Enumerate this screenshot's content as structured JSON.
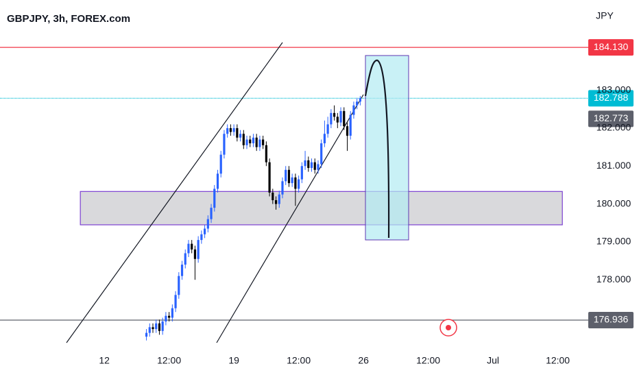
{
  "chart_data": {
    "type": "candlestick",
    "title": "GBPJPY, 3h, FOREX.com",
    "y_unit": "JPY",
    "x": [
      13,
      14,
      15,
      16,
      17,
      18,
      19,
      20,
      21,
      22,
      23,
      24,
      25,
      26,
      27,
      28,
      29,
      30,
      31,
      32,
      33,
      34,
      35,
      36,
      37,
      38,
      39,
      40,
      41,
      42,
      43,
      44,
      45,
      46,
      47,
      48,
      49,
      50,
      51,
      52,
      53,
      54,
      55,
      56,
      57,
      58,
      59,
      60,
      61,
      62,
      63,
      64,
      65,
      66,
      67,
      68,
      69,
      70,
      71,
      72,
      73,
      74,
      75,
      76,
      77,
      78,
      79
    ],
    "open": [
      176.5,
      176.6,
      176.75,
      176.7,
      176.85,
      176.65,
      176.9,
      177.05,
      177.0,
      177.25,
      177.6,
      178.1,
      178.4,
      178.7,
      178.95,
      178.8,
      178.55,
      179.05,
      179.2,
      179.35,
      179.6,
      179.9,
      180.4,
      180.8,
      181.3,
      181.85,
      182.0,
      181.9,
      182.0,
      181.75,
      181.85,
      181.55,
      181.7,
      181.6,
      181.75,
      181.5,
      181.7,
      181.55,
      181.1,
      180.3,
      180.1,
      180.0,
      180.25,
      180.6,
      180.9,
      180.55,
      180.7,
      180.4,
      180.65,
      181.0,
      181.15,
      180.95,
      181.1,
      180.9,
      181.05,
      181.6,
      181.85,
      182.1,
      182.4,
      182.3,
      182.15,
      182.45,
      182.05,
      181.8,
      182.35,
      182.6,
      182.7
    ],
    "high": [
      176.7,
      176.85,
      176.85,
      176.95,
      176.95,
      177.0,
      177.15,
      177.15,
      177.35,
      177.7,
      178.2,
      178.5,
      178.8,
      179.05,
      179.05,
      178.9,
      179.15,
      179.3,
      179.45,
      179.7,
      180.0,
      180.5,
      180.9,
      181.4,
      181.95,
      182.1,
      182.1,
      182.1,
      182.1,
      181.95,
      181.95,
      181.8,
      181.8,
      181.85,
      181.85,
      181.8,
      181.8,
      181.65,
      181.2,
      180.4,
      180.2,
      180.35,
      180.7,
      181.0,
      181.0,
      180.8,
      180.8,
      180.75,
      181.1,
      181.4,
      181.25,
      181.2,
      181.2,
      181.15,
      181.7,
      182.2,
      182.3,
      182.5,
      182.6,
      182.4,
      182.55,
      182.55,
      182.15,
      182.45,
      182.7,
      182.8,
      182.85
    ],
    "low": [
      176.4,
      176.5,
      176.6,
      176.6,
      176.55,
      176.55,
      176.8,
      176.9,
      176.9,
      177.15,
      177.5,
      178.0,
      178.3,
      178.6,
      178.7,
      178.0,
      178.45,
      178.95,
      179.1,
      179.25,
      179.5,
      179.8,
      180.3,
      180.7,
      181.2,
      181.75,
      181.8,
      181.8,
      181.65,
      181.65,
      181.45,
      181.45,
      181.5,
      181.5,
      181.4,
      181.4,
      181.45,
      181.0,
      180.2,
      180.0,
      179.85,
      179.9,
      180.15,
      180.5,
      180.45,
      180.45,
      179.95,
      180.3,
      180.55,
      180.9,
      180.85,
      180.85,
      180.8,
      180.8,
      180.95,
      181.5,
      181.75,
      182.0,
      182.2,
      182.0,
      182.05,
      181.95,
      181.4,
      181.7,
      182.25,
      182.5,
      182.6
    ],
    "close": [
      176.6,
      176.75,
      176.7,
      176.85,
      176.65,
      176.9,
      177.05,
      177.0,
      177.25,
      177.6,
      178.1,
      178.4,
      178.7,
      178.95,
      178.8,
      178.55,
      179.05,
      179.2,
      179.35,
      179.6,
      179.9,
      180.4,
      180.8,
      181.3,
      181.85,
      182.0,
      181.9,
      182.0,
      181.75,
      181.85,
      181.55,
      181.7,
      181.6,
      181.75,
      181.5,
      181.7,
      181.55,
      181.1,
      180.3,
      180.1,
      180.0,
      180.25,
      180.6,
      180.9,
      180.55,
      180.7,
      180.4,
      180.65,
      181.0,
      181.15,
      180.95,
      181.1,
      180.9,
      181.05,
      181.6,
      181.85,
      182.1,
      182.4,
      182.3,
      182.15,
      182.45,
      182.05,
      181.8,
      182.35,
      182.6,
      182.7,
      182.79
    ],
    "up_color": "#2962ff",
    "down_color": "#000000",
    "xlim": [
      -32.2,
      149.4
    ],
    "ylim": [
      176.34,
      185.38
    ],
    "xticks": [
      {
        "value": 0,
        "label": "12"
      },
      {
        "value": 20,
        "label": "12:00"
      },
      {
        "value": 40,
        "label": "19"
      },
      {
        "value": 60,
        "label": "12:00"
      },
      {
        "value": 80,
        "label": "26"
      },
      {
        "value": 100,
        "label": "12:00"
      },
      {
        "value": 120,
        "label": "Jul"
      },
      {
        "value": 140,
        "label": "12:00"
      }
    ],
    "yticks": [
      {
        "value": 178,
        "label": "178.000"
      },
      {
        "value": 179,
        "label": "179.000"
      },
      {
        "value": 180,
        "label": "180.000"
      },
      {
        "value": 181,
        "label": "181.000"
      },
      {
        "value": 182,
        "label": "182.000"
      },
      {
        "value": 183,
        "label": "183.000"
      }
    ],
    "price_lines": [
      {
        "value": 184.13,
        "label": "184.130",
        "color": "#f23645",
        "style": "solid"
      },
      {
        "value": 182.788,
        "label": "182.788",
        "color": "#00bcd4",
        "style": "dotted"
      },
      {
        "value": 176.936,
        "label": "176.936",
        "color": "#5d606b",
        "style": "solid"
      }
    ],
    "price_tags": [
      {
        "value": 182.773,
        "label": "182.773",
        "color": "#5d606b"
      }
    ],
    "zone": {
      "low": 179.45,
      "high": 180.33,
      "x_start": -7.4,
      "x_end": 141.4,
      "color": "#d9d9dc",
      "border": "#7b3fd1"
    }
  }
}
